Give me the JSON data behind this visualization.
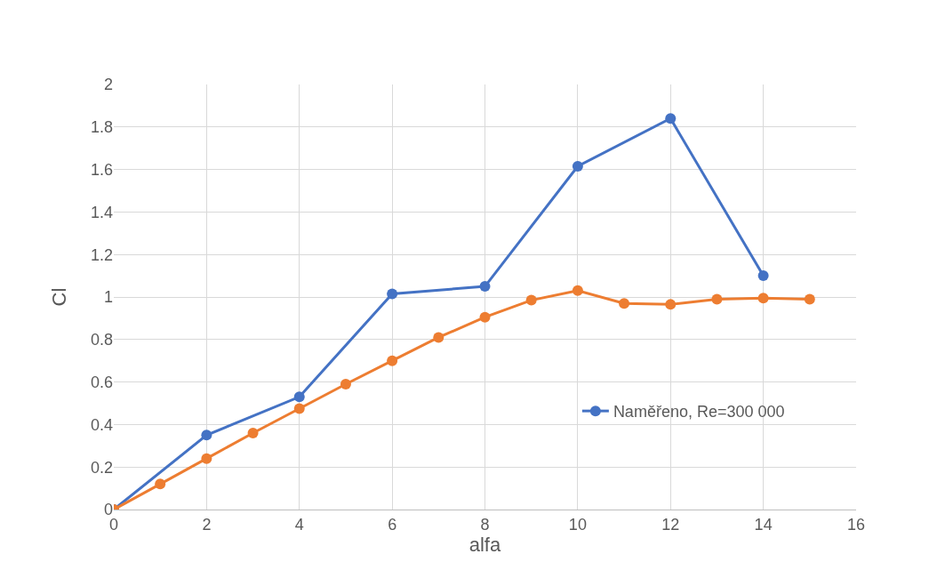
{
  "chart_data": {
    "type": "line",
    "xlabel": "alfa",
    "ylabel": "Cl",
    "xlim": [
      0,
      16
    ],
    "xticks": [
      0,
      2,
      4,
      6,
      8,
      10,
      12,
      14,
      16
    ],
    "ylim": [
      0,
      2
    ],
    "yticks": [
      0,
      {
        "value": 0.2,
        "label": "0.2"
      },
      {
        "value": 0.4,
        "label": "0.4"
      },
      {
        "value": 0.6,
        "label": "0.6"
      },
      {
        "value": 0.8,
        "label": "0.8"
      },
      1,
      {
        "value": 1.2,
        "label": "1.2"
      },
      {
        "value": 1.4,
        "label": "1.4"
      },
      {
        "value": 1.6,
        "label": "1.6"
      },
      {
        "value": 1.8,
        "label": "1.8"
      },
      2
    ],
    "grid": true,
    "legend": "bottom right",
    "marker": "circle",
    "line_style": "solid",
    "series": [
      {
        "name": "Naměřeno, Re=300 000",
        "color": "#4472c4",
        "x": [
          0,
          2,
          4,
          6,
          8,
          10,
          12,
          14
        ],
        "values": [
          0,
          0.35,
          0.53,
          1.015,
          1.05,
          1.615,
          1.84,
          1.1
        ]
      },
      {
        "color": "#ed7d31",
        "x": [
          0,
          1,
          2,
          3,
          4,
          5,
          6,
          7,
          8,
          9,
          10,
          11,
          12,
          13,
          14,
          15
        ],
        "values": [
          0,
          0.12,
          0.24,
          0.36,
          0.475,
          0.59,
          0.7,
          0.81,
          0.905,
          0.985,
          1.03,
          0.97,
          0.965,
          0.99,
          0.995,
          0.99
        ]
      }
    ]
  }
}
